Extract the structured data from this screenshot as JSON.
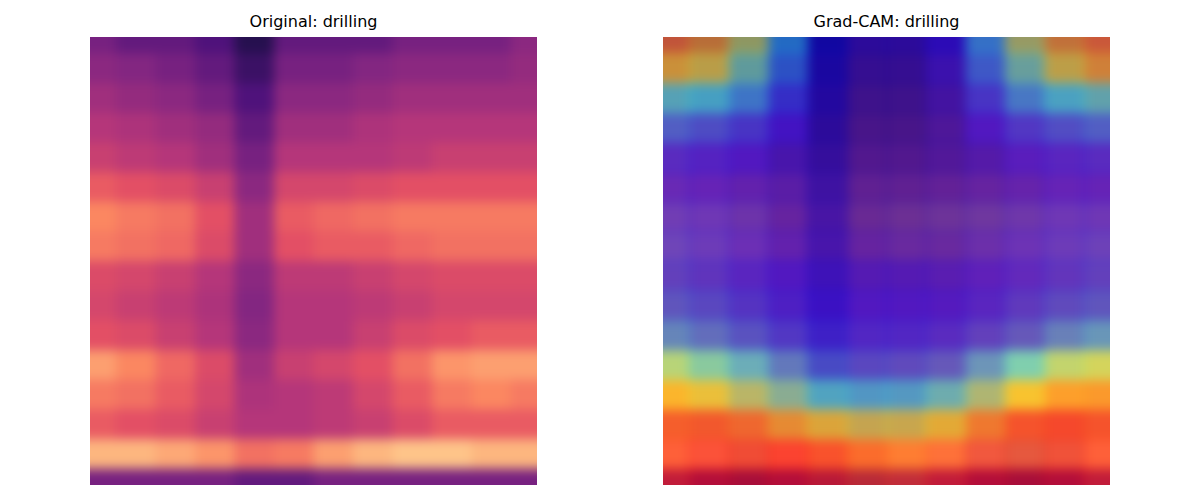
{
  "chart_data": [
    {
      "type": "heatmap",
      "title": "Original: drilling",
      "tick_labels": false,
      "cells": [
        [
          0.35,
          0.3,
          0.3,
          0.25,
          0.15,
          0.3,
          0.3,
          0.3,
          0.35,
          0.35,
          0.35,
          0.4
        ],
        [
          0.4,
          0.38,
          0.35,
          0.3,
          0.2,
          0.35,
          0.35,
          0.38,
          0.4,
          0.4,
          0.4,
          0.42
        ],
        [
          0.45,
          0.42,
          0.4,
          0.35,
          0.25,
          0.4,
          0.4,
          0.42,
          0.45,
          0.45,
          0.45,
          0.45
        ],
        [
          0.5,
          0.48,
          0.45,
          0.42,
          0.3,
          0.45,
          0.45,
          0.48,
          0.5,
          0.5,
          0.5,
          0.5
        ],
        [
          0.55,
          0.52,
          0.5,
          0.45,
          0.35,
          0.5,
          0.5,
          0.5,
          0.52,
          0.55,
          0.55,
          0.55
        ],
        [
          0.65,
          0.62,
          0.6,
          0.55,
          0.4,
          0.58,
          0.58,
          0.6,
          0.62,
          0.62,
          0.62,
          0.62
        ],
        [
          0.75,
          0.72,
          0.7,
          0.62,
          0.45,
          0.65,
          0.68,
          0.7,
          0.72,
          0.72,
          0.72,
          0.72
        ],
        [
          0.72,
          0.7,
          0.68,
          0.6,
          0.45,
          0.62,
          0.65,
          0.65,
          0.68,
          0.7,
          0.7,
          0.7
        ],
        [
          0.6,
          0.58,
          0.55,
          0.5,
          0.4,
          0.52,
          0.52,
          0.55,
          0.58,
          0.6,
          0.6,
          0.6
        ],
        [
          0.58,
          0.55,
          0.52,
          0.48,
          0.38,
          0.5,
          0.5,
          0.52,
          0.55,
          0.58,
          0.58,
          0.58
        ],
        [
          0.62,
          0.6,
          0.55,
          0.5,
          0.4,
          0.5,
          0.5,
          0.55,
          0.6,
          0.62,
          0.65,
          0.65
        ],
        [
          0.8,
          0.75,
          0.68,
          0.6,
          0.45,
          0.55,
          0.58,
          0.62,
          0.7,
          0.78,
          0.8,
          0.8
        ],
        [
          0.72,
          0.7,
          0.65,
          0.58,
          0.48,
          0.5,
          0.52,
          0.58,
          0.65,
          0.72,
          0.75,
          0.72
        ],
        [
          0.65,
          0.62,
          0.6,
          0.55,
          0.5,
          0.5,
          0.52,
          0.55,
          0.6,
          0.65,
          0.65,
          0.65
        ],
        [
          0.85,
          0.85,
          0.82,
          0.78,
          0.7,
          0.72,
          0.8,
          0.85,
          0.88,
          0.88,
          0.85,
          0.85
        ],
        [
          0.35,
          0.35,
          0.35,
          0.35,
          0.3,
          0.3,
          0.35,
          0.35,
          0.35,
          0.35,
          0.35,
          0.35
        ]
      ]
    },
    {
      "type": "heatmap",
      "title": "Grad-CAM: drilling",
      "tick_labels": false,
      "cells": [
        [
          0.35,
          0.3,
          0.3,
          0.25,
          0.15,
          0.3,
          0.3,
          0.3,
          0.35,
          0.35,
          0.35,
          0.4
        ],
        [
          0.4,
          0.38,
          0.35,
          0.3,
          0.2,
          0.35,
          0.35,
          0.38,
          0.4,
          0.4,
          0.4,
          0.42
        ],
        [
          0.45,
          0.42,
          0.4,
          0.35,
          0.25,
          0.4,
          0.4,
          0.42,
          0.45,
          0.45,
          0.45,
          0.45
        ],
        [
          0.5,
          0.48,
          0.45,
          0.42,
          0.3,
          0.45,
          0.45,
          0.48,
          0.5,
          0.5,
          0.5,
          0.5
        ],
        [
          0.55,
          0.52,
          0.5,
          0.45,
          0.35,
          0.5,
          0.5,
          0.5,
          0.52,
          0.55,
          0.55,
          0.55
        ],
        [
          0.65,
          0.62,
          0.6,
          0.55,
          0.4,
          0.58,
          0.58,
          0.6,
          0.62,
          0.62,
          0.62,
          0.62
        ],
        [
          0.75,
          0.72,
          0.7,
          0.62,
          0.45,
          0.65,
          0.68,
          0.7,
          0.72,
          0.72,
          0.72,
          0.72
        ],
        [
          0.72,
          0.7,
          0.68,
          0.6,
          0.45,
          0.62,
          0.65,
          0.65,
          0.68,
          0.7,
          0.7,
          0.7
        ],
        [
          0.6,
          0.58,
          0.55,
          0.5,
          0.4,
          0.52,
          0.52,
          0.55,
          0.58,
          0.6,
          0.6,
          0.6
        ],
        [
          0.58,
          0.55,
          0.52,
          0.48,
          0.38,
          0.5,
          0.5,
          0.52,
          0.55,
          0.58,
          0.58,
          0.58
        ],
        [
          0.62,
          0.6,
          0.55,
          0.5,
          0.4,
          0.5,
          0.5,
          0.55,
          0.6,
          0.62,
          0.65,
          0.65
        ],
        [
          0.8,
          0.75,
          0.68,
          0.6,
          0.45,
          0.55,
          0.58,
          0.62,
          0.7,
          0.78,
          0.8,
          0.8
        ],
        [
          0.72,
          0.7,
          0.65,
          0.58,
          0.48,
          0.5,
          0.52,
          0.58,
          0.65,
          0.72,
          0.75,
          0.72
        ],
        [
          0.65,
          0.62,
          0.6,
          0.55,
          0.5,
          0.5,
          0.52,
          0.55,
          0.6,
          0.65,
          0.65,
          0.65
        ],
        [
          0.85,
          0.85,
          0.82,
          0.78,
          0.7,
          0.72,
          0.8,
          0.85,
          0.88,
          0.88,
          0.85,
          0.85
        ],
        [
          0.35,
          0.35,
          0.35,
          0.35,
          0.3,
          0.3,
          0.35,
          0.35,
          0.35,
          0.35,
          0.35,
          0.35
        ]
      ],
      "cam_cells": [
        [
          0.75,
          0.7,
          0.55,
          0.3,
          0.1,
          0.05,
          0.05,
          0.1,
          0.3,
          0.55,
          0.7,
          0.75
        ],
        [
          0.65,
          0.6,
          0.45,
          0.25,
          0.08,
          0.03,
          0.03,
          0.08,
          0.25,
          0.45,
          0.6,
          0.68
        ],
        [
          0.4,
          0.38,
          0.3,
          0.18,
          0.06,
          0.02,
          0.02,
          0.06,
          0.18,
          0.3,
          0.38,
          0.42
        ],
        [
          0.25,
          0.22,
          0.18,
          0.12,
          0.05,
          0.02,
          0.02,
          0.05,
          0.12,
          0.18,
          0.22,
          0.25
        ],
        [
          0.15,
          0.14,
          0.12,
          0.08,
          0.05,
          0.03,
          0.03,
          0.05,
          0.08,
          0.12,
          0.14,
          0.15
        ],
        [
          0.12,
          0.12,
          0.1,
          0.08,
          0.06,
          0.05,
          0.05,
          0.06,
          0.08,
          0.1,
          0.12,
          0.12
        ],
        [
          0.12,
          0.12,
          0.1,
          0.08,
          0.07,
          0.06,
          0.06,
          0.07,
          0.08,
          0.1,
          0.12,
          0.12
        ],
        [
          0.15,
          0.14,
          0.12,
          0.1,
          0.08,
          0.08,
          0.08,
          0.08,
          0.1,
          0.12,
          0.14,
          0.15
        ],
        [
          0.18,
          0.16,
          0.14,
          0.12,
          0.1,
          0.1,
          0.1,
          0.1,
          0.12,
          0.14,
          0.16,
          0.18
        ],
        [
          0.22,
          0.2,
          0.17,
          0.14,
          0.12,
          0.12,
          0.12,
          0.12,
          0.14,
          0.17,
          0.2,
          0.22
        ],
        [
          0.3,
          0.26,
          0.22,
          0.18,
          0.15,
          0.15,
          0.15,
          0.15,
          0.18,
          0.22,
          0.28,
          0.32
        ],
        [
          0.5,
          0.42,
          0.35,
          0.28,
          0.22,
          0.2,
          0.2,
          0.22,
          0.3,
          0.4,
          0.52,
          0.55
        ],
        [
          0.65,
          0.6,
          0.52,
          0.45,
          0.38,
          0.35,
          0.35,
          0.4,
          0.5,
          0.62,
          0.7,
          0.7
        ],
        [
          0.78,
          0.78,
          0.75,
          0.68,
          0.62,
          0.58,
          0.58,
          0.62,
          0.72,
          0.8,
          0.82,
          0.8
        ],
        [
          0.85,
          0.88,
          0.9,
          0.88,
          0.82,
          0.78,
          0.78,
          0.82,
          0.9,
          0.92,
          0.9,
          0.85
        ],
        [
          0.85,
          0.9,
          0.92,
          0.9,
          0.85,
          0.82,
          0.82,
          0.85,
          0.9,
          0.92,
          0.9,
          0.85
        ]
      ]
    }
  ]
}
